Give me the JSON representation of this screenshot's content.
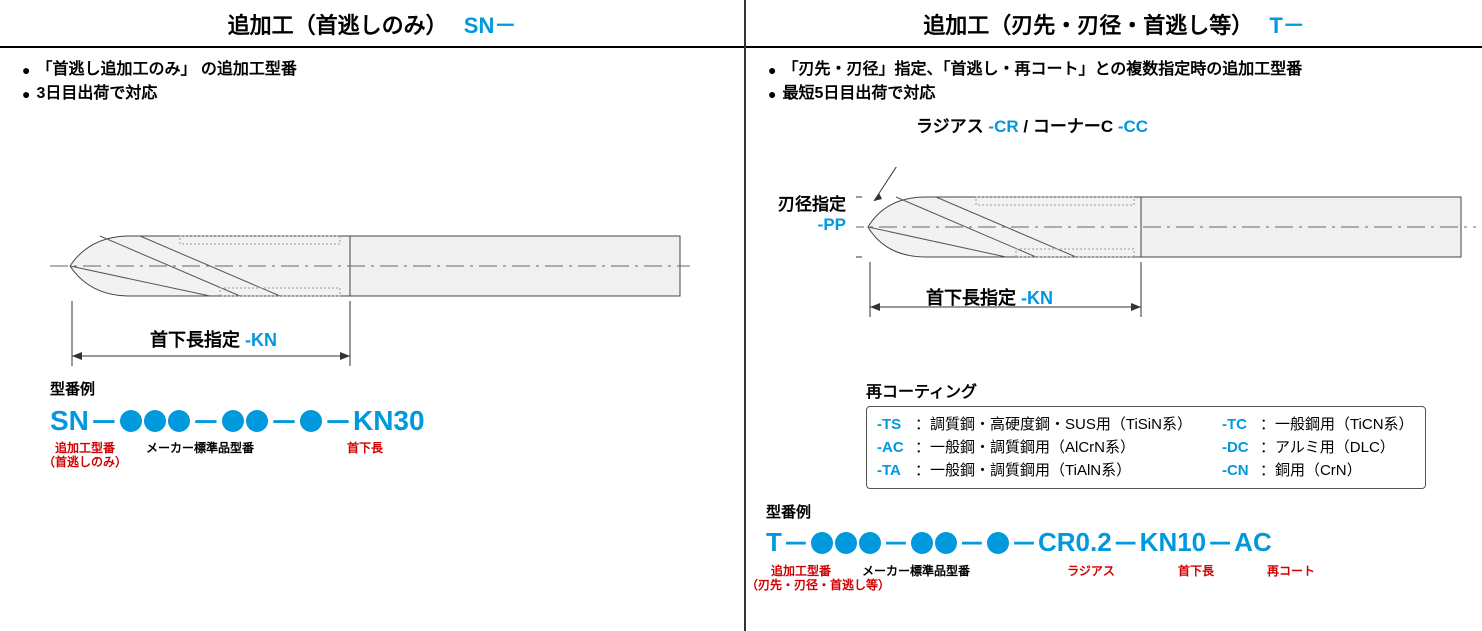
{
  "left": {
    "title_main": "追加工（首逃しのみ）",
    "title_code": "SN－",
    "bullets": [
      "「首逃し追加工のみ」 の追加工型番",
      "3日目出荷で対応"
    ],
    "kn_label_text": "首下長指定",
    "kn_label_code": "-KN",
    "example_label": "型番例",
    "example": {
      "prefix": "SN",
      "suffix": "KN30"
    },
    "sublabels": {
      "a": "追加工型番\n（首逃しのみ）",
      "b": "メーカー標準品型番",
      "c": "首下長"
    }
  },
  "right": {
    "title_main": "追加工（刃先・刃径・首逃し等）",
    "title_code": "T－",
    "bullets": [
      "「刃先・刃径」指定、「首逃し・再コート」との複数指定時の追加工型番",
      "最短5日目出荷で対応"
    ],
    "radius_label": "ラジアス",
    "radius_code": "-CR",
    "corner_sep": "/",
    "corner_label": "コーナーC",
    "corner_code": "-CC",
    "diameter_label": "刃径指定",
    "diameter_code": "-PP",
    "kn_label_text": "首下長指定",
    "kn_label_code": "-KN",
    "recoat_title": "再コーティング",
    "recoat_items_left": [
      {
        "code": "-TS",
        "desc": "：調質鋼・高硬度鋼・SUS用（TiSiN系）"
      },
      {
        "code": "-AC",
        "desc": "：一般鋼・調質鋼用（AlCrN系）"
      },
      {
        "code": "-TA",
        "desc": "：一般鋼・調質鋼用（TiAlN系）"
      }
    ],
    "recoat_items_right": [
      {
        "code": "-TC",
        "desc": "：一般鋼用（TiCN系）"
      },
      {
        "code": "-DC",
        "desc": "：アルミ用（DLC）"
      },
      {
        "code": "-CN",
        "desc": "：銅用（CrN）"
      }
    ],
    "example_label": "型番例",
    "example": {
      "prefix": "T",
      "mid1": "CR0.2",
      "mid2": "KN10",
      "suffix": "AC"
    },
    "sublabels": {
      "a": "追加工型番\n（刃先・刃径・首逃し等）",
      "b": "メーカー標準品型番",
      "c": "ラジアス",
      "d": "首下長",
      "e": "再コート"
    }
  },
  "colors": {
    "accent": "#0099dd",
    "red": "#d00000",
    "text": "#000000",
    "grey_fill": "#f5f5f5",
    "grey_stroke": "#666666"
  }
}
